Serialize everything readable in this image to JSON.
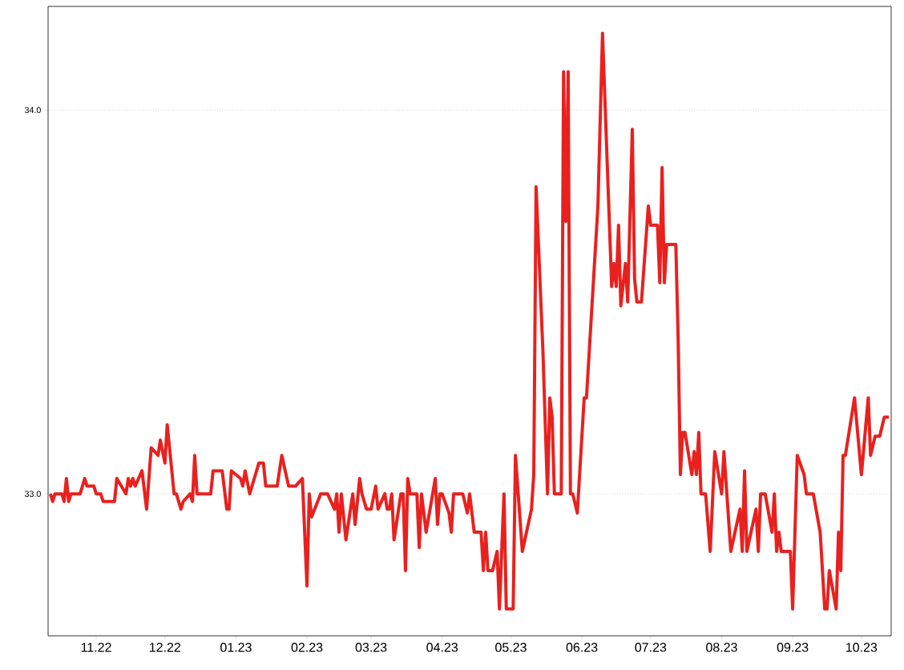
{
  "chart_data": {
    "type": "line",
    "x": [
      "2022-10-12",
      "2022-10-13",
      "2022-10-14",
      "2022-10-17",
      "2022-10-18",
      "2022-10-19",
      "2022-10-20",
      "2022-10-21",
      "2022-10-25",
      "2022-10-27",
      "2022-10-28",
      "2022-10-31",
      "2022-11-01",
      "2022-11-03",
      "2022-11-04",
      "2022-11-09",
      "2022-11-10",
      "2022-11-14",
      "2022-11-15",
      "2022-11-16",
      "2022-11-17",
      "2022-11-18",
      "2022-11-21",
      "2022-11-23",
      "2022-11-25",
      "2022-11-28",
      "2022-11-29",
      "2022-12-01",
      "2022-12-02",
      "2022-12-05",
      "2022-12-06",
      "2022-12-08",
      "2022-12-09",
      "2022-12-12",
      "2022-12-13",
      "2022-12-14",
      "2022-12-15",
      "2022-12-21",
      "2022-12-22",
      "2022-12-26",
      "2022-12-28",
      "2022-12-29",
      "2022-12-30",
      "2023-01-03",
      "2023-01-04",
      "2023-01-05",
      "2023-01-07",
      "2023-01-09",
      "2023-01-11",
      "2023-01-13",
      "2023-01-14",
      "2023-01-19",
      "2023-01-21",
      "2023-01-24",
      "2023-01-27",
      "2023-01-30",
      "2023-02-01",
      "2023-02-02",
      "2023-02-03",
      "2023-02-07",
      "2023-02-10",
      "2023-02-13",
      "2023-02-14",
      "2023-02-15",
      "2023-02-16",
      "2023-02-18",
      "2023-02-21",
      "2023-02-22",
      "2023-02-24",
      "2023-02-25",
      "2023-02-27",
      "2023-03-01",
      "2023-03-03",
      "2023-03-04",
      "2023-03-07",
      "2023-03-08",
      "2023-03-09",
      "2023-03-10",
      "2023-03-11",
      "2023-03-14",
      "2023-03-15",
      "2023-03-16",
      "2023-03-17",
      "2023-03-18",
      "2023-03-21",
      "2023-03-22",
      "2023-03-23",
      "2023-03-25",
      "2023-03-29",
      "2023-03-30",
      "2023-03-31",
      "2023-04-01",
      "2023-04-04",
      "2023-04-05",
      "2023-04-06",
      "2023-04-10",
      "2023-04-12",
      "2023-04-13",
      "2023-04-15",
      "2023-04-18",
      "2023-04-19",
      "2023-04-20",
      "2023-04-21",
      "2023-04-23",
      "2023-04-25",
      "2023-04-26",
      "2023-04-28",
      "2023-04-29",
      "2023-05-02",
      "2023-05-03",
      "2023-05-06",
      "2023-05-10",
      "2023-05-11",
      "2023-05-12",
      "2023-05-15",
      "2023-05-17",
      "2023-05-18",
      "2023-05-19",
      "2023-05-20",
      "2023-05-23",
      "2023-05-24",
      "2023-05-25",
      "2023-05-26",
      "2023-05-27",
      "2023-05-28",
      "2023-05-30",
      "2023-06-02",
      "2023-06-03",
      "2023-06-08",
      "2023-06-10",
      "2023-06-14",
      "2023-06-15",
      "2023-06-16",
      "2023-06-17",
      "2023-06-18",
      "2023-06-20",
      "2023-06-21",
      "2023-06-23",
      "2023-06-24",
      "2023-06-25",
      "2023-06-27",
      "2023-06-30",
      "2023-07-01",
      "2023-07-04",
      "2023-07-05",
      "2023-07-06",
      "2023-07-07",
      "2023-07-08",
      "2023-07-12",
      "2023-07-13",
      "2023-07-14",
      "2023-07-15",
      "2023-07-16",
      "2023-07-19",
      "2023-07-20",
      "2023-07-21",
      "2023-07-22",
      "2023-07-23",
      "2023-07-25",
      "2023-07-27",
      "2023-07-29",
      "2023-08-01",
      "2023-08-02",
      "2023-08-05",
      "2023-08-09",
      "2023-08-10",
      "2023-08-11",
      "2023-08-12",
      "2023-08-16",
      "2023-08-17",
      "2023-08-18",
      "2023-08-20",
      "2023-08-23",
      "2023-08-24",
      "2023-08-25",
      "2023-08-26",
      "2023-08-27",
      "2023-08-31",
      "2023-09-01",
      "2023-09-03",
      "2023-09-06",
      "2023-09-07",
      "2023-09-10",
      "2023-09-13",
      "2023-09-15",
      "2023-09-16",
      "2023-09-17",
      "2023-09-20",
      "2023-09-21",
      "2023-09-22",
      "2023-09-23",
      "2023-09-24",
      "2023-09-28",
      "2023-10-01",
      "2023-10-04",
      "2023-10-05",
      "2023-10-07",
      "2023-10-09",
      "2023-10-11",
      "2023-10-13"
    ],
    "series": [
      {
        "color": "#e8211f",
        "values": [
          33.0,
          32.98,
          33.0,
          33.0,
          32.98,
          33.04,
          32.98,
          33.0,
          33.0,
          33.04,
          33.02,
          33.02,
          33.0,
          33.0,
          32.98,
          32.98,
          33.04,
          33.0,
          33.04,
          33.02,
          33.04,
          33.02,
          33.06,
          32.96,
          33.12,
          33.1,
          33.14,
          33.08,
          33.18,
          33.0,
          33.0,
          32.96,
          32.98,
          33.0,
          32.98,
          33.1,
          33.0,
          33.0,
          33.06,
          33.06,
          32.96,
          32.96,
          33.06,
          33.04,
          33.02,
          33.06,
          33.0,
          33.04,
          33.08,
          33.08,
          33.02,
          33.02,
          33.1,
          33.02,
          33.02,
          33.04,
          32.76,
          33.0,
          32.94,
          33.0,
          33.0,
          32.96,
          33.0,
          32.9,
          33.0,
          32.88,
          33.0,
          32.92,
          33.04,
          33.0,
          32.96,
          32.96,
          33.02,
          32.96,
          33.0,
          32.96,
          32.96,
          33.0,
          32.88,
          33.0,
          33.0,
          32.8,
          33.04,
          33.0,
          33.0,
          32.86,
          33.0,
          32.9,
          33.04,
          32.92,
          33.0,
          33.0,
          32.95,
          32.9,
          33.0,
          33.0,
          32.95,
          33.0,
          32.9,
          32.9,
          32.8,
          32.9,
          32.8,
          32.8,
          32.85,
          32.7,
          33.0,
          32.7,
          32.7,
          33.1,
          32.85,
          32.96,
          33.05,
          33.8,
          33.37,
          33.0,
          33.25,
          33.2,
          33.0,
          33.0,
          34.1,
          33.71,
          34.1,
          33.0,
          33.0,
          32.95,
          33.25,
          33.25,
          33.75,
          34.2,
          33.54,
          33.6,
          33.54,
          33.7,
          33.49,
          33.6,
          33.5,
          33.95,
          33.56,
          33.5,
          33.5,
          33.75,
          33.7,
          33.7,
          33.55,
          33.85,
          33.55,
          33.65,
          33.65,
          33.41,
          33.05,
          33.16,
          33.16,
          33.05,
          33.11,
          33.05,
          33.16,
          33.0,
          33.0,
          32.85,
          33.11,
          33.0,
          33.11,
          32.85,
          32.96,
          32.85,
          33.06,
          32.85,
          32.96,
          32.85,
          33.0,
          33.0,
          32.9,
          33.0,
          32.85,
          32.9,
          32.85,
          32.85,
          32.7,
          33.1,
          33.05,
          33.0,
          33.0,
          32.9,
          32.7,
          32.7,
          32.8,
          32.7,
          32.9,
          32.8,
          33.1,
          33.1,
          33.25,
          33.05,
          33.25,
          33.1,
          33.15,
          33.15,
          33.2,
          33.2
        ]
      }
    ],
    "xlim": [
      "2022-10-11",
      "2023-10-14"
    ],
    "xticks": [
      {
        "value": "2022-11-01",
        "label": "11.22"
      },
      {
        "value": "2022-12-01",
        "label": "12.22"
      },
      {
        "value": "2023-01-01",
        "label": "01.23"
      },
      {
        "value": "2023-02-01",
        "label": "02.23"
      },
      {
        "value": "2023-03-01",
        "label": "03.23"
      },
      {
        "value": "2023-04-01",
        "label": "04.23"
      },
      {
        "value": "2023-05-01",
        "label": "05.23"
      },
      {
        "value": "2023-06-01",
        "label": "06.23"
      },
      {
        "value": "2023-07-01",
        "label": "07.23"
      },
      {
        "value": "2023-08-01",
        "label": "08.23"
      },
      {
        "value": "2023-09-01",
        "label": "09.23"
      },
      {
        "value": "2023-10-01",
        "label": "10.23"
      }
    ],
    "ylim": [
      32.63,
      34.27
    ],
    "yticks": [
      {
        "value": 33.0,
        "label": "33.0"
      },
      {
        "value": 34.0,
        "label": "34.0"
      }
    ],
    "grid": "y"
  }
}
